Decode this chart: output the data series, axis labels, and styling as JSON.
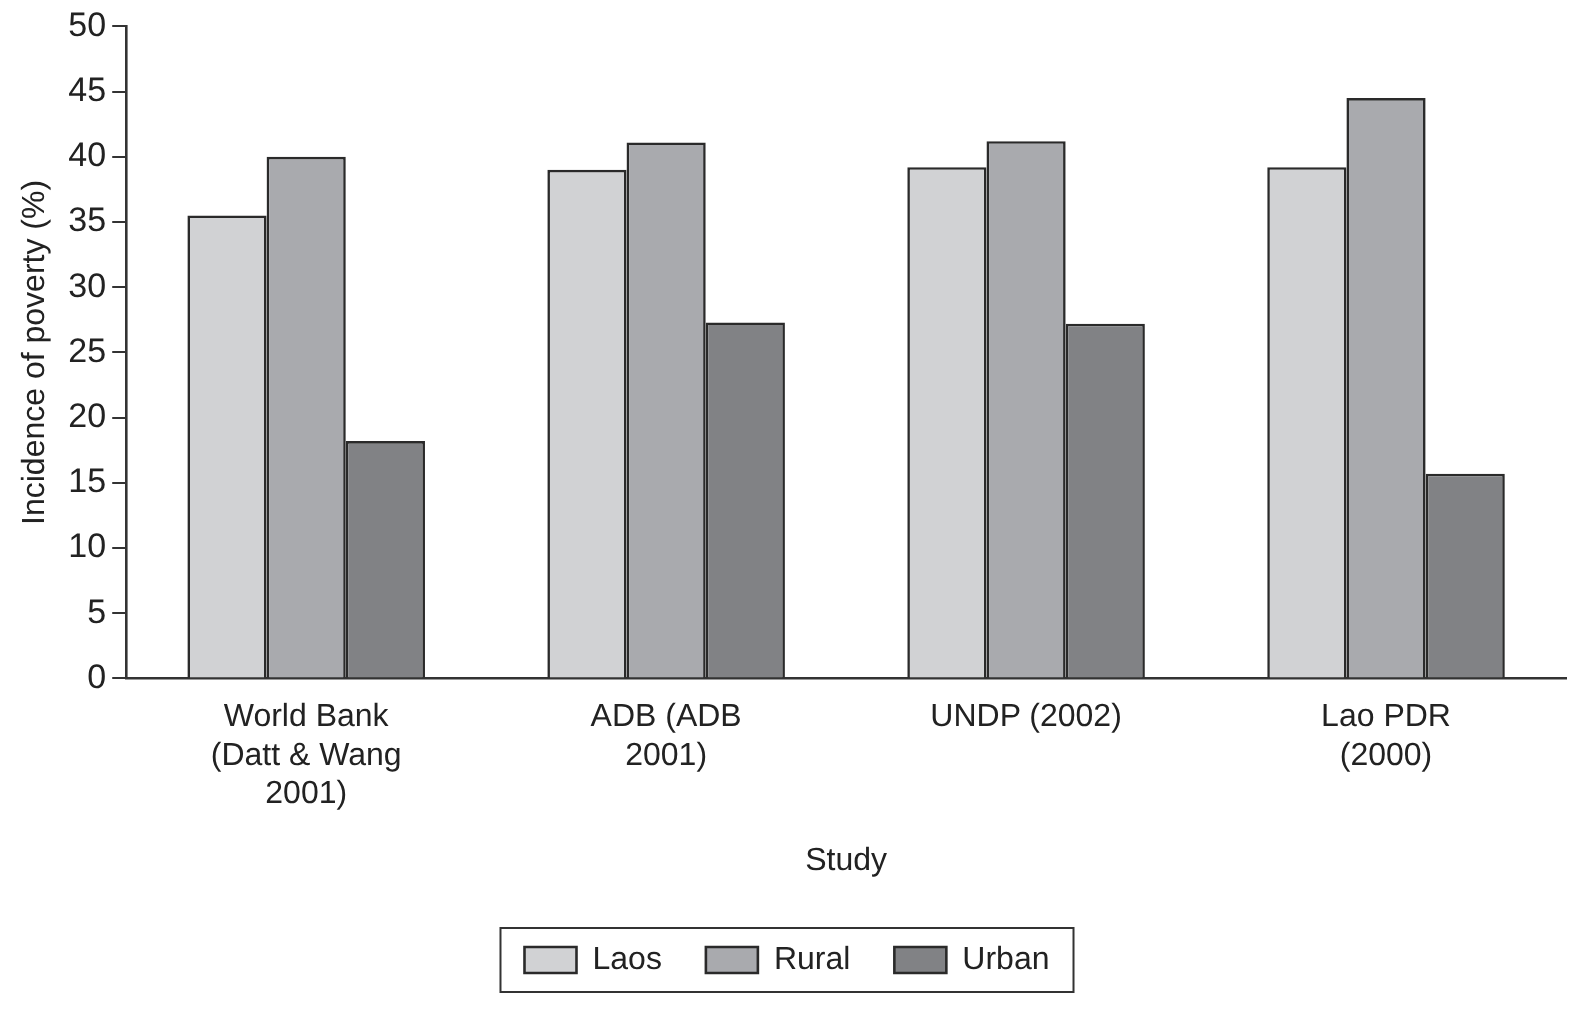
{
  "chart_data": {
    "type": "bar",
    "xlabel": "Study",
    "ylabel": "Incidence of poverty (%)",
    "categories": [
      "World Bank (Datt & Wang 2001)",
      "ADB (ADB 2001)",
      "UNDP (2002)",
      "Lao PDR (2000)"
    ],
    "series": [
      {
        "name": "Laos",
        "color": "#d1d2d4",
        "values": [
          35.5,
          39.0,
          39.2,
          39.2
        ]
      },
      {
        "name": "Rural",
        "color": "#a9aaae",
        "values": [
          40.0,
          41.1,
          41.2,
          44.5
        ]
      },
      {
        "name": "Urban",
        "color": "#818285",
        "values": [
          18.2,
          27.3,
          27.2,
          15.7
        ]
      }
    ],
    "ylim": [
      0,
      50
    ],
    "yticks": [
      0,
      5,
      10,
      15,
      20,
      25,
      30,
      35,
      40,
      45,
      50
    ],
    "grid": false,
    "legend": "bottom"
  }
}
